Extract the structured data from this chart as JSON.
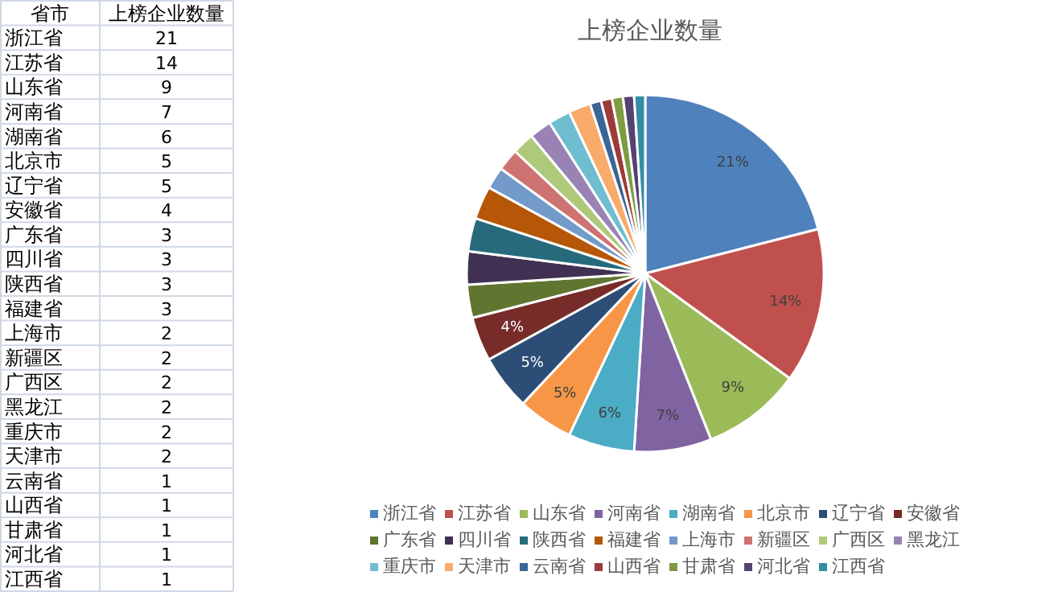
{
  "chart_data": [
    {
      "type": "other",
      "categories": [
        "浙江省",
        "江苏省",
        "山东省",
        "河南省",
        "湖南省",
        "北京市",
        "辽宁省",
        "安徽省",
        "广东省",
        "四川省",
        "陕西省",
        "福建省",
        "上海市",
        "新疆区",
        "广西区",
        "黑龙江",
        "重庆市",
        "天津市",
        "云南省",
        "山西省",
        "甘肃省",
        "河北省",
        "江西省"
      ],
      "values": [
        21,
        14,
        9,
        7,
        6,
        5,
        5,
        4,
        3,
        3,
        3,
        3,
        2,
        2,
        2,
        2,
        2,
        2,
        1,
        1,
        1,
        1,
        1
      ],
      "data_labels": true,
      "annotations": [
        "省市",
        "上榜企业数量"
      ]
    },
    {
      "type": "pie",
      "title": "上榜企业数量",
      "categories": [
        "浙江省",
        "江苏省",
        "山东省",
        "河南省",
        "湖南省",
        "北京市",
        "辽宁省",
        "安徽省",
        "广东省",
        "四川省",
        "陕西省",
        "福建省",
        "上海市",
        "新疆区",
        "广西区",
        "黑龙江",
        "重庆市",
        "天津市",
        "云南省",
        "山西省",
        "甘肃省",
        "河北省",
        "江西省"
      ],
      "values": [
        21,
        14,
        9,
        7,
        6,
        5,
        5,
        4,
        3,
        3,
        3,
        3,
        2,
        2,
        2,
        2,
        2,
        2,
        1,
        1,
        1,
        1,
        1
      ],
      "value_labels": [
        "21%",
        "14%",
        "9%",
        "7%",
        "6%",
        "5%",
        "5%",
        "4%",
        null,
        null,
        null,
        null,
        null,
        null,
        null,
        null,
        null,
        null,
        null,
        null,
        null,
        null,
        null
      ],
      "colors": [
        "#4f81bd",
        "#c0504d",
        "#9bbb59",
        "#8064a2",
        "#4bacc6",
        "#f79646",
        "#2c4d75",
        "#772c2a",
        "#5f7530",
        "#403152",
        "#276a7c",
        "#b65708",
        "#729aca",
        "#cd7371",
        "#afc97a",
        "#9983b5",
        "#6fbdd1",
        "#f9ab6b",
        "#3a6595",
        "#9e3b38",
        "#7e9c40",
        "#554270",
        "#348da5"
      ],
      "legend": "bottom"
    }
  ]
}
